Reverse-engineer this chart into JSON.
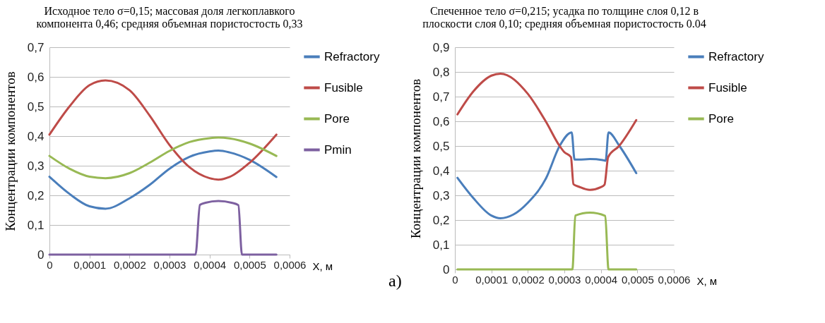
{
  "chart_data": [
    {
      "type": "line",
      "title": "Исходное тело σ=0,15; массовая доля легкоплавкого\nкомпонента 0,46; средняя объемная пористостость 0,33",
      "xlabel": "X, м",
      "ylabel": "Концентрации компонентов",
      "xlim": [
        0,
        0.0006
      ],
      "xticks": [
        0,
        {
          "value": 0.0001,
          "label": "0,0001"
        },
        {
          "value": 0.0002,
          "label": "0,0002"
        },
        {
          "value": 0.0003,
          "label": "0,0003"
        },
        {
          "value": 0.0004,
          "label": "0,0004"
        },
        {
          "value": 0.0005,
          "label": "0,0005"
        },
        {
          "value": 0.0006,
          "label": "0,0006"
        }
      ],
      "ylim": [
        0,
        0.7
      ],
      "yticks": [
        0,
        {
          "value": 0.1,
          "label": "0,1"
        },
        {
          "value": 0.2,
          "label": "0,2"
        },
        {
          "value": 0.3,
          "label": "0,3"
        },
        {
          "value": 0.4,
          "label": "0,4"
        },
        {
          "value": 0.5,
          "label": "0,5"
        },
        {
          "value": 0.6,
          "label": "0,6"
        },
        {
          "value": 0.7,
          "label": "0,7"
        }
      ],
      "grid": "y",
      "legend": "right",
      "annotations": [
        "а)"
      ],
      "series": [
        {
          "name": "Refractory",
          "color": "#4a7ebb",
          "x": [
            0,
            5e-05,
            0.0001,
            0.00014,
            0.0002,
            0.00025,
            0.0003,
            0.00035,
            0.0004,
            0.000422,
            0.00045,
            0.0005,
            0.000567
          ],
          "values": [
            0.263,
            0.205,
            0.163,
            0.155,
            0.19,
            0.235,
            0.29,
            0.33,
            0.348,
            0.351,
            0.345,
            0.32,
            0.262
          ]
        },
        {
          "name": "Fusible",
          "color": "#be4b48",
          "x": [
            0,
            5e-05,
            0.0001,
            0.00014,
            0.0002,
            0.00025,
            0.0003,
            0.00035,
            0.0004,
            0.000422,
            0.00045,
            0.0005,
            0.000567
          ],
          "values": [
            0.405,
            0.5,
            0.572,
            0.588,
            0.555,
            0.47,
            0.37,
            0.295,
            0.258,
            0.253,
            0.262,
            0.31,
            0.405
          ]
        },
        {
          "name": "Pore",
          "color": "#98b954",
          "x": [
            0,
            5e-05,
            0.0001,
            0.00014,
            0.0002,
            0.00025,
            0.0003,
            0.00035,
            0.0004,
            0.000422,
            0.00045,
            0.0005,
            0.000567
          ],
          "values": [
            0.333,
            0.29,
            0.263,
            0.258,
            0.275,
            0.31,
            0.35,
            0.38,
            0.393,
            0.395,
            0.392,
            0.375,
            0.333
          ]
        },
        {
          "name": "Pmin",
          "color": "#7d60a0",
          "x": [
            0,
            0.000365,
            0.000376,
            0.00039,
            0.000422,
            0.000455,
            0.000472,
            0.000481,
            0.000567
          ],
          "values": [
            0,
            0,
            0.168,
            0.175,
            0.181,
            0.175,
            0.167,
            0,
            0
          ]
        }
      ]
    },
    {
      "type": "line",
      "title": "Спеченное тело σ=0,215; усадка по толщине слоя  0,12  в\nплоскости слоя 0,10; средняя объемная пористостость 0.04",
      "xlabel": "X, м",
      "ylabel": "Концентрации компонентов",
      "xlim": [
        0,
        0.0006
      ],
      "xticks": [
        0,
        {
          "value": 0.0001,
          "label": "0,0001"
        },
        {
          "value": 0.0002,
          "label": "0,0002"
        },
        {
          "value": 0.0003,
          "label": "0,0003"
        },
        {
          "value": 0.0004,
          "label": "0,0004"
        },
        {
          "value": 0.0005,
          "label": "0,0005"
        },
        {
          "value": 0.0006,
          "label": "0,0006"
        }
      ],
      "ylim": [
        0,
        0.9
      ],
      "yticks": [
        0,
        {
          "value": 0.1,
          "label": "0,1"
        },
        {
          "value": 0.2,
          "label": "0,2"
        },
        {
          "value": 0.3,
          "label": "0,3"
        },
        {
          "value": 0.4,
          "label": "0,4"
        },
        {
          "value": 0.5,
          "label": "0,5"
        },
        {
          "value": 0.6,
          "label": "0,6"
        },
        {
          "value": 0.7,
          "label": "0,7"
        },
        {
          "value": 0.8,
          "label": "0,8"
        },
        {
          "value": 0.9,
          "label": "0,9"
        }
      ],
      "grid": "y",
      "legend": "right",
      "series": [
        {
          "name": "Refractory",
          "color": "#4a7ebb",
          "x": [
            7e-06,
            5e-05,
            0.0001,
            0.000125,
            0.00016,
            0.0002,
            0.00025,
            0.000287,
            0.00032,
            0.000328,
            0.00034,
            0.00037,
            0.000405,
            0.000413,
            0.000421,
            0.000451,
            0.000497
          ],
          "values": [
            0.371,
            0.29,
            0.218,
            0.207,
            0.222,
            0.27,
            0.37,
            0.5,
            0.555,
            0.445,
            0.445,
            0.447,
            0.443,
            0.44,
            0.555,
            0.5,
            0.39
          ]
        },
        {
          "name": "Fusible",
          "color": "#be4b48",
          "x": [
            7e-06,
            5e-05,
            0.0001,
            0.000125,
            0.0002,
            0.00025,
            0.000287,
            0.0003,
            0.000318,
            0.000325,
            0.00034,
            0.00037,
            0.0004,
            0.00041,
            0.00042,
            0.00045,
            0.000497
          ],
          "values": [
            0.628,
            0.72,
            0.785,
            0.793,
            0.711,
            0.597,
            0.5,
            0.475,
            0.455,
            0.345,
            0.335,
            0.322,
            0.333,
            0.343,
            0.455,
            0.5,
            0.605
          ]
        },
        {
          "name": "Pore",
          "color": "#98b954",
          "x": [
            7e-06,
            0.000322,
            0.00033,
            0.00037,
            0.000412,
            0.000421,
            0.000497
          ],
          "values": [
            0,
            0,
            0.218,
            0.23,
            0.217,
            0,
            0
          ]
        }
      ]
    }
  ]
}
